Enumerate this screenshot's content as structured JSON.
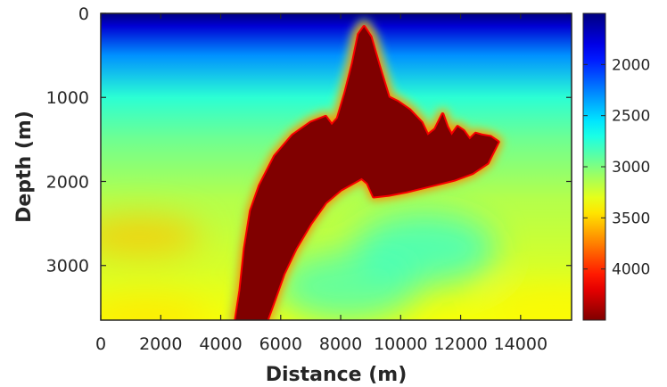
{
  "chart_data": {
    "type": "heatmap",
    "title": "",
    "xlabel": "Distance (m)",
    "ylabel": "Depth (m)",
    "xlim": [
      0,
      15700
    ],
    "ylim": [
      3650,
      0
    ],
    "x_ticks": [
      0,
      2000,
      4000,
      6000,
      8000,
      10000,
      12000,
      14000
    ],
    "x_tick_labels": [
      "0",
      "2000",
      "4000",
      "6000",
      "8000",
      "10000",
      "12000",
      "14000"
    ],
    "y_ticks": [
      0,
      1000,
      2000,
      3000
    ],
    "y_tick_labels": [
      "0",
      "1000",
      "2000",
      "3000"
    ],
    "colormap": "jet",
    "color_range": [
      1500,
      4500
    ],
    "colorbar_ticks": [
      2000,
      2500,
      3000,
      3500,
      4000
    ],
    "colorbar_tick_labels": [
      "2000",
      "2500",
      "3000",
      "3500",
      "4000"
    ],
    "background_velocity": [
      {
        "depth": 0,
        "value": 1500
      },
      {
        "depth": 150,
        "value": 1750
      },
      {
        "depth": 500,
        "value": 2300
      },
      {
        "depth": 1000,
        "value": 2750
      },
      {
        "depth": 1500,
        "value": 2950
      },
      {
        "depth": 2200,
        "value": 3150
      },
      {
        "depth": 3000,
        "value": 3250
      },
      {
        "depth": 3650,
        "value": 3350
      }
    ],
    "salt_body": {
      "value": 4500,
      "outline": [
        [
          4500,
          3650
        ],
        [
          4650,
          3300
        ],
        [
          4800,
          2800
        ],
        [
          5000,
          2350
        ],
        [
          5300,
          2050
        ],
        [
          5800,
          1700
        ],
        [
          6400,
          1450
        ],
        [
          7000,
          1300
        ],
        [
          7500,
          1230
        ],
        [
          7700,
          1330
        ],
        [
          7900,
          1250
        ],
        [
          8150,
          950
        ],
        [
          8400,
          600
        ],
        [
          8600,
          250
        ],
        [
          8780,
          160
        ],
        [
          9000,
          280
        ],
        [
          9300,
          650
        ],
        [
          9600,
          1000
        ],
        [
          9900,
          1050
        ],
        [
          10300,
          1150
        ],
        [
          10700,
          1300
        ],
        [
          10900,
          1450
        ],
        [
          11150,
          1380
        ],
        [
          11400,
          1200
        ],
        [
          11550,
          1350
        ],
        [
          11700,
          1450
        ],
        [
          11900,
          1350
        ],
        [
          12100,
          1400
        ],
        [
          12300,
          1500
        ],
        [
          12500,
          1430
        ],
        [
          12700,
          1450
        ],
        [
          13000,
          1470
        ],
        [
          13250,
          1530
        ],
        [
          12900,
          1780
        ],
        [
          12400,
          1900
        ],
        [
          11800,
          1980
        ],
        [
          11000,
          2050
        ],
        [
          10200,
          2120
        ],
        [
          9600,
          2160
        ],
        [
          9100,
          2180
        ],
        [
          8900,
          2020
        ],
        [
          8700,
          1960
        ],
        [
          8400,
          2020
        ],
        [
          8000,
          2100
        ],
        [
          7500,
          2250
        ],
        [
          7000,
          2500
        ],
        [
          6500,
          2800
        ],
        [
          6100,
          3100
        ],
        [
          5800,
          3400
        ],
        [
          5550,
          3650
        ]
      ]
    },
    "anomalies": [
      {
        "label": "slow-zone",
        "x": 10800,
        "depth": 2800,
        "value": 2750
      },
      {
        "label": "slow-zone",
        "x": 8200,
        "depth": 3250,
        "value": 2800
      },
      {
        "label": "fast-zone",
        "x": 1300,
        "depth": 2650,
        "value": 3550
      },
      {
        "label": "fast-zone",
        "x": 1500,
        "depth": 3600,
        "value": 3450
      },
      {
        "label": "fast-zone",
        "x": 15100,
        "depth": 3500,
        "value": 3400
      }
    ]
  }
}
